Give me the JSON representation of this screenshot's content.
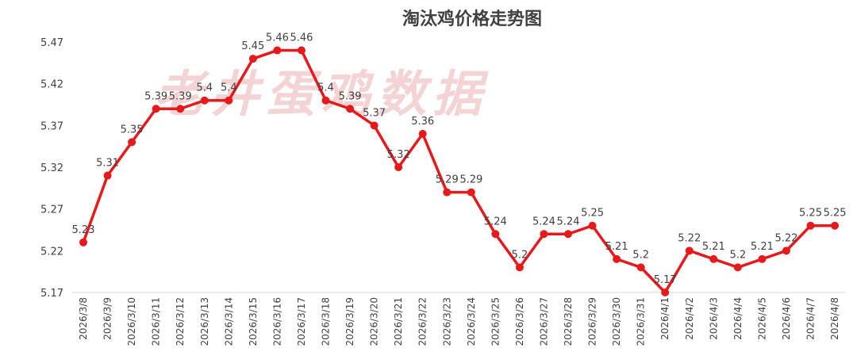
{
  "chart_data": {
    "type": "line",
    "title": "淘汰鸡价格走势图",
    "watermark": "老井蛋鸡数据",
    "xlabel": "",
    "ylabel": "",
    "ylim": [
      5.17,
      5.47
    ],
    "yticks": [
      "5.17",
      "5.22",
      "5.27",
      "5.32",
      "5.37",
      "5.42",
      "5.47"
    ],
    "grid": false,
    "legend": "none",
    "line_color": "#e8191a",
    "x": [
      "2026/3/8",
      "2026/3/9",
      "2026/3/10",
      "2026/3/11",
      "2026/3/12",
      "2026/3/13",
      "2026/3/14",
      "2026/3/15",
      "2026/3/16",
      "2026/3/17",
      "2026/3/18",
      "2026/3/19",
      "2026/3/20",
      "2026/3/21",
      "2026/3/22",
      "2026/3/23",
      "2026/3/24",
      "2026/3/25",
      "2026/3/26",
      "2026/3/27",
      "2026/3/28",
      "2026/3/29",
      "2026/3/30",
      "2026/3/31",
      "2026/4/1",
      "2026/4/2",
      "2026/4/3",
      "2026/4/4",
      "2026/4/5",
      "2026/4/6",
      "2026/4/7",
      "2026/4/8"
    ],
    "series": [
      {
        "values": [
          5.23,
          5.31,
          5.35,
          5.39,
          5.39,
          5.4,
          5.4,
          5.45,
          5.46,
          5.46,
          5.4,
          5.39,
          5.37,
          5.32,
          5.36,
          5.29,
          5.29,
          5.24,
          5.2,
          5.24,
          5.24,
          5.25,
          5.21,
          5.2,
          5.17,
          5.22,
          5.21,
          5.2,
          5.21,
          5.22,
          5.25,
          5.25
        ],
        "labels": [
          "5.23",
          "5.31",
          "5.35",
          "5.39",
          "5.39",
          "5.4",
          "5.4",
          "5.45",
          "5.46",
          "5.46",
          "5.4",
          "5.39",
          "5.37",
          "5.32",
          "5.36",
          "5.29",
          "5.29",
          "5.24",
          "5.2",
          "5.24",
          "5.24",
          "5.25",
          "5.21",
          "5.2",
          "5.17",
          "5.22",
          "5.21",
          "5.2",
          "5.21",
          "5.22",
          "5.25",
          "5.25"
        ]
      }
    ]
  }
}
